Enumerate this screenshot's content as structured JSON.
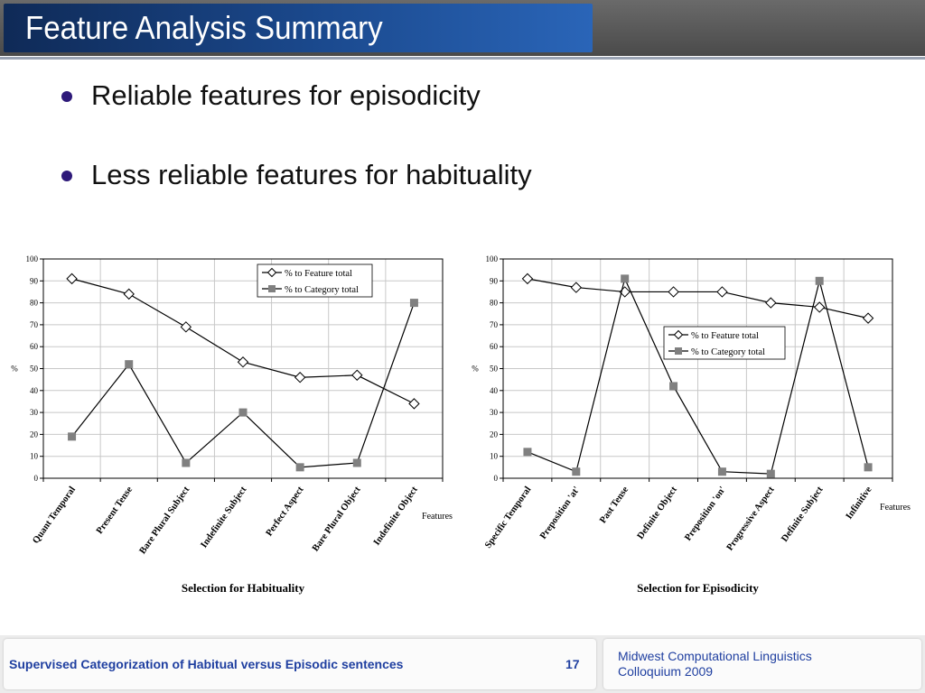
{
  "slide": {
    "title": "Feature Analysis Summary",
    "bullets": [
      "Reliable features for episodicity",
      "Less reliable features for habituality"
    ]
  },
  "footer": {
    "title": "Supervised Categorization of Habitual versus Episodic sentences",
    "page_number": "17",
    "conference_line1": "Midwest Computational Linguistics",
    "conference_line2": "Colloquium 2009"
  },
  "colors": {
    "feature_series": "#000000",
    "category_series": "#808080",
    "footer_text": "#1f3fa0",
    "title_bg": "#1b4a8f"
  },
  "chart_data": [
    {
      "type": "line",
      "title": "Selection for Habituality",
      "xlabel": "Features",
      "ylabel": "%",
      "ylim": [
        0,
        100
      ],
      "yticks": [
        0,
        10,
        20,
        30,
        40,
        50,
        60,
        70,
        80,
        90,
        100
      ],
      "grid": true,
      "legend_position": "top-right",
      "categories": [
        "Quant Temporal",
        "Present Tense",
        "Bare Plural Subject",
        "Indefinite Subject",
        "Perfect Aspect",
        "Bare Plural Object",
        "Indefinite Object"
      ],
      "series": [
        {
          "name": "% to Feature total",
          "marker": "diamond",
          "values": [
            91,
            84,
            69,
            53,
            46,
            47,
            34
          ]
        },
        {
          "name": "% to Category total",
          "marker": "square",
          "values": [
            19,
            52,
            7,
            30,
            5,
            7,
            80
          ]
        }
      ]
    },
    {
      "type": "line",
      "title": "Selection for Episodicity",
      "xlabel": "Features",
      "ylabel": "%",
      "ylim": [
        0,
        100
      ],
      "yticks": [
        0,
        10,
        20,
        30,
        40,
        50,
        60,
        70,
        80,
        90,
        100
      ],
      "grid": true,
      "legend_position": "right",
      "categories": [
        "Specific Temporal",
        "Preposition 'at'",
        "Past Tense",
        "Definite Object",
        "Preposition 'on'",
        "Progressive Aspect",
        "Definite Subject",
        "Infinitive"
      ],
      "series": [
        {
          "name": "% to Feature total",
          "marker": "diamond",
          "values": [
            91,
            87,
            85,
            85,
            85,
            80,
            78,
            73
          ]
        },
        {
          "name": "% to Category total",
          "marker": "square",
          "values": [
            12,
            3,
            91,
            42,
            3,
            2,
            90,
            5
          ]
        }
      ]
    }
  ]
}
